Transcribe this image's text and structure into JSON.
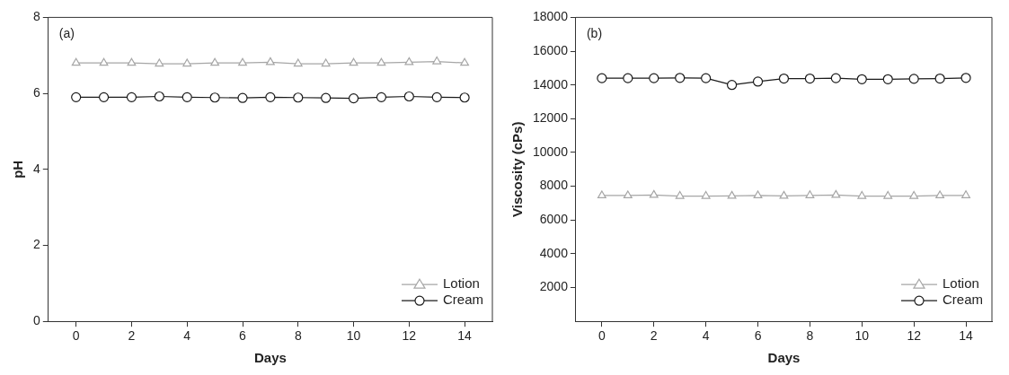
{
  "chart_data": [
    {
      "type": "line",
      "xlabel": "Days",
      "ylabel": "pH",
      "annotations": [
        "(a)"
      ],
      "x": [
        0,
        1,
        2,
        3,
        4,
        5,
        6,
        7,
        8,
        9,
        10,
        11,
        12,
        13,
        14
      ],
      "xlim": [
        -1,
        15
      ],
      "xticks": [
        0,
        2,
        4,
        6,
        8,
        10,
        12,
        14
      ],
      "ylim": [
        0,
        8
      ],
      "yticks": [
        0,
        2,
        4,
        6,
        8
      ],
      "legend": "bottom right",
      "series": [
        {
          "name": "Lotion",
          "color": "#a6a6a6",
          "marker": "triangle",
          "values": [
            6.8,
            6.8,
            6.8,
            6.78,
            6.78,
            6.8,
            6.8,
            6.82,
            6.78,
            6.78,
            6.8,
            6.8,
            6.82,
            6.84,
            6.8
          ]
        },
        {
          "name": "Cream",
          "color": "#1a1a1a",
          "marker": "circle",
          "values": [
            5.9,
            5.9,
            5.9,
            5.92,
            5.9,
            5.89,
            5.88,
            5.9,
            5.89,
            5.88,
            5.87,
            5.9,
            5.92,
            5.9,
            5.89
          ]
        }
      ]
    },
    {
      "type": "line",
      "xlabel": "Days",
      "ylabel": "Viscosity (cPs)",
      "annotations": [
        "(b)"
      ],
      "x": [
        0,
        1,
        2,
        3,
        4,
        5,
        6,
        7,
        8,
        9,
        10,
        11,
        12,
        13,
        14
      ],
      "xlim": [
        -1,
        15
      ],
      "xticks": [
        0,
        2,
        4,
        6,
        8,
        10,
        12,
        14
      ],
      "ylim": [
        0,
        18000
      ],
      "yticks": [
        2000,
        4000,
        6000,
        8000,
        10000,
        12000,
        14000,
        16000,
        18000
      ],
      "legend": "bottom right",
      "series": [
        {
          "name": "Lotion",
          "color": "#a6a6a6",
          "marker": "triangle",
          "values": [
            7450,
            7450,
            7480,
            7420,
            7420,
            7430,
            7450,
            7430,
            7460,
            7480,
            7420,
            7420,
            7420,
            7450,
            7460
          ]
        },
        {
          "name": "Cream",
          "color": "#1a1a1a",
          "marker": "circle",
          "values": [
            14400,
            14400,
            14400,
            14420,
            14400,
            14000,
            14200,
            14380,
            14380,
            14400,
            14340,
            14340,
            14360,
            14380,
            14420
          ]
        }
      ]
    }
  ]
}
